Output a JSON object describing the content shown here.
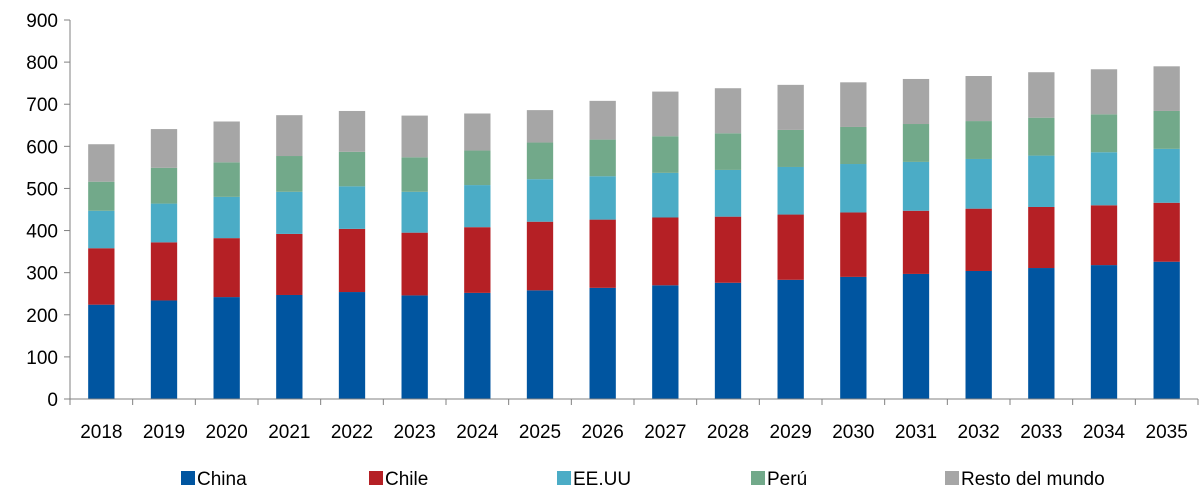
{
  "chart_data": {
    "type": "bar",
    "stacked": true,
    "title": "",
    "xlabel": "",
    "ylabel": "",
    "ylim": [
      0,
      900
    ],
    "yticks": [
      0,
      100,
      200,
      300,
      400,
      500,
      600,
      700,
      800,
      900
    ],
    "grid": false,
    "legend": "bottom",
    "categories": [
      "2018",
      "2019",
      "2020",
      "2021",
      "2022",
      "2023",
      "2024",
      "2025",
      "2026",
      "2027",
      "2028",
      "2029",
      "2030",
      "2031",
      "2032",
      "2033",
      "2034",
      "2035"
    ],
    "series": [
      {
        "name": "China",
        "color": "#0055a0",
        "values": [
          224,
          234,
          242,
          247,
          254,
          246,
          252,
          258,
          264,
          270,
          276,
          283,
          290,
          297,
          304,
          311,
          318,
          326
        ]
      },
      {
        "name": "Chile",
        "color": "#b52025",
        "values": [
          134,
          138,
          140,
          145,
          150,
          149,
          156,
          163,
          162,
          161,
          157,
          155,
          153,
          150,
          148,
          145,
          142,
          140
        ]
      },
      {
        "name": "EE.UU",
        "color": "#4bacc6",
        "values": [
          89,
          92,
          98,
          100,
          101,
          97,
          100,
          101,
          103,
          106,
          111,
          113,
          115,
          116,
          118,
          122,
          126,
          128
        ]
      },
      {
        "name": "Perú",
        "color": "#72a98a",
        "values": [
          69,
          85,
          82,
          85,
          82,
          82,
          82,
          87,
          87,
          87,
          87,
          88,
          88,
          90,
          90,
          90,
          90,
          90
        ]
      },
      {
        "name": "Resto del mundo",
        "color": "#a6a6a6",
        "values": [
          89,
          92,
          97,
          97,
          97,
          99,
          88,
          77,
          92,
          106,
          107,
          107,
          106,
          107,
          107,
          108,
          107,
          106
        ]
      }
    ]
  }
}
